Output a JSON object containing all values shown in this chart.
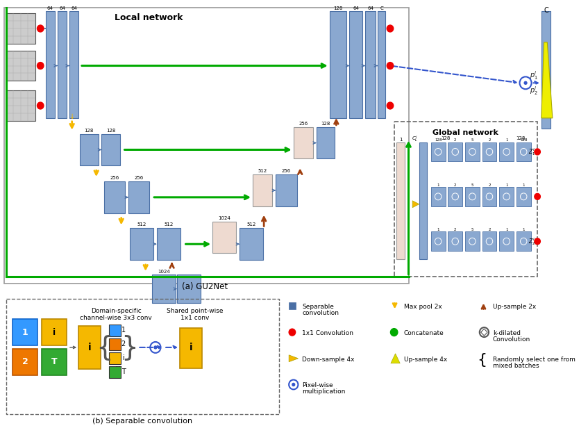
{
  "title_local": "Local network",
  "title_global": "Global network",
  "caption_a": "(a) GU2Net",
  "caption_b": "(b) Separable convolution",
  "bg_color": "#ffffff",
  "box_blue": "#8aa8d0",
  "box_blue_dark": "#4a6fa5",
  "box_peach": "#eedad0",
  "yellow": "#f5b800",
  "green": "#00aa00",
  "red": "#ee0000",
  "brown": "#a04010",
  "blue_arrow": "#3355cc"
}
